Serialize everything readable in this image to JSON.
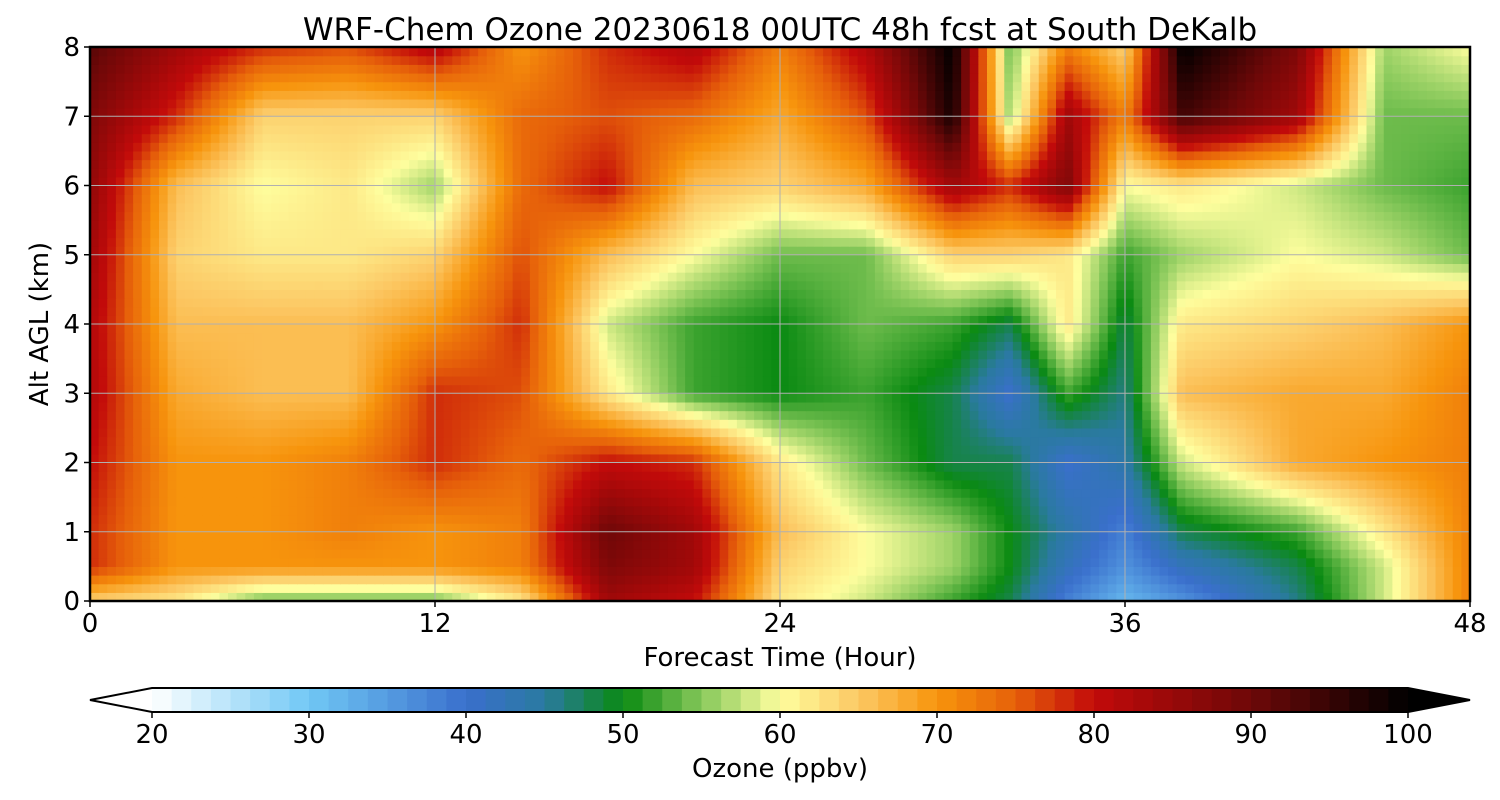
{
  "chart_data": {
    "type": "heatmap",
    "title": "WRF-Chem Ozone  20230618 00UTC 48h fcst at South DeKalb",
    "xlabel": "Forecast Time (Hour)",
    "ylabel": "Alt AGL (km)",
    "xlim": [
      0,
      48
    ],
    "ylim": [
      0,
      8
    ],
    "xticks": [
      0,
      12,
      24,
      36,
      48
    ],
    "yticks": [
      0,
      1,
      2,
      3,
      4,
      5,
      6,
      7,
      8
    ],
    "grid": true,
    "x": [
      0,
      3,
      6,
      9,
      12,
      15,
      18,
      21,
      24,
      27,
      30,
      32,
      34,
      36,
      38,
      42,
      45,
      48
    ],
    "y": [
      0,
      0.5,
      1,
      2,
      3,
      4,
      5,
      6,
      7,
      8
    ],
    "z": [
      [
        64,
        62,
        54,
        54,
        54,
        62,
        84,
        80,
        62,
        58,
        52,
        48,
        38,
        32,
        36,
        46,
        58,
        72
      ],
      [
        78,
        70,
        70,
        70,
        70,
        72,
        88,
        84,
        64,
        60,
        56,
        50,
        42,
        36,
        42,
        48,
        58,
        72
      ],
      [
        78,
        70,
        70,
        72,
        70,
        72,
        90,
        84,
        66,
        60,
        56,
        50,
        44,
        38,
        48,
        52,
        62,
        72
      ],
      [
        80,
        70,
        70,
        72,
        78,
        74,
        80,
        78,
        62,
        54,
        48,
        48,
        40,
        44,
        58,
        68,
        70,
        72
      ],
      [
        82,
        68,
        66,
        66,
        78,
        76,
        62,
        52,
        50,
        52,
        48,
        40,
        52,
        46,
        66,
        68,
        68,
        72
      ],
      [
        82,
        66,
        66,
        66,
        70,
        78,
        58,
        52,
        50,
        54,
        52,
        48,
        62,
        48,
        62,
        64,
        66,
        70
      ],
      [
        84,
        64,
        62,
        62,
        64,
        76,
        66,
        60,
        54,
        54,
        64,
        64,
        62,
        52,
        56,
        60,
        58,
        54
      ],
      [
        86,
        66,
        60,
        62,
        56,
        74,
        80,
        66,
        64,
        68,
        84,
        78,
        88,
        60,
        62,
        58,
        54,
        52
      ],
      [
        88,
        78,
        64,
        64,
        64,
        74,
        76,
        74,
        68,
        76,
        98,
        56,
        84,
        72,
        94,
        84,
        54,
        54
      ],
      [
        92,
        84,
        78,
        76,
        82,
        70,
        78,
        82,
        72,
        82,
        100,
        54,
        72,
        64,
        100,
        88,
        56,
        60
      ]
    ],
    "colorbar": {
      "label": "Ozone  (ppbv)",
      "min": 20,
      "max": 100,
      "ticks": [
        20,
        30,
        40,
        50,
        60,
        70,
        80,
        90,
        100
      ],
      "extend": "both",
      "colors": [
        {
          "v": 20,
          "c": "#ffffff"
        },
        {
          "v": 30,
          "c": "#70c8f5"
        },
        {
          "v": 40,
          "c": "#3a6fcc"
        },
        {
          "v": 45,
          "c": "#2a7aa0"
        },
        {
          "v": 50,
          "c": "#0a8a12"
        },
        {
          "v": 55,
          "c": "#86c85a"
        },
        {
          "v": 60,
          "c": "#fefe9e"
        },
        {
          "v": 65,
          "c": "#fcc864"
        },
        {
          "v": 70,
          "c": "#f7940c"
        },
        {
          "v": 75,
          "c": "#e6600a"
        },
        {
          "v": 80,
          "c": "#c20a0a"
        },
        {
          "v": 90,
          "c": "#6e0808"
        },
        {
          "v": 100,
          "c": "#000000"
        }
      ]
    }
  }
}
